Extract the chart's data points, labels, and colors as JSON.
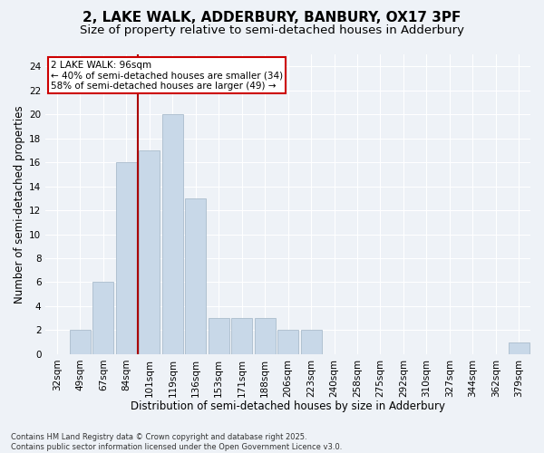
{
  "title_line1": "2, LAKE WALK, ADDERBURY, BANBURY, OX17 3PF",
  "title_line2": "Size of property relative to semi-detached houses in Adderbury",
  "xlabel": "Distribution of semi-detached houses by size in Adderbury",
  "ylabel": "Number of semi-detached properties",
  "categories": [
    "32sqm",
    "49sqm",
    "67sqm",
    "84sqm",
    "101sqm",
    "119sqm",
    "136sqm",
    "153sqm",
    "171sqm",
    "188sqm",
    "206sqm",
    "223sqm",
    "240sqm",
    "258sqm",
    "275sqm",
    "292sqm",
    "310sqm",
    "327sqm",
    "344sqm",
    "362sqm",
    "379sqm"
  ],
  "values": [
    0,
    2,
    6,
    16,
    17,
    20,
    13,
    3,
    3,
    3,
    2,
    2,
    0,
    0,
    0,
    0,
    0,
    0,
    0,
    0,
    1
  ],
  "bar_color": "#c8d8e8",
  "bar_edgecolor": "#aabccc",
  "bar_width": 0.9,
  "ylim": [
    0,
    25
  ],
  "yticks": [
    0,
    2,
    4,
    6,
    8,
    10,
    12,
    14,
    16,
    18,
    20,
    22,
    24
  ],
  "red_line_color": "#aa0000",
  "annotation_text": "2 LAKE WALK: 96sqm\n← 40% of semi-detached houses are smaller (34)\n58% of semi-detached houses are larger (49) →",
  "annotation_box_facecolor": "#ffffff",
  "annotation_box_edgecolor": "#cc0000",
  "footer_text": "Contains HM Land Registry data © Crown copyright and database right 2025.\nContains public sector information licensed under the Open Government Licence v3.0.",
  "bg_color": "#eef2f7",
  "grid_color": "#ffffff",
  "title_fontsize": 11,
  "subtitle_fontsize": 9.5,
  "tick_fontsize": 7.5,
  "label_fontsize": 8.5,
  "footer_fontsize": 6,
  "annotation_fontsize": 7.5
}
